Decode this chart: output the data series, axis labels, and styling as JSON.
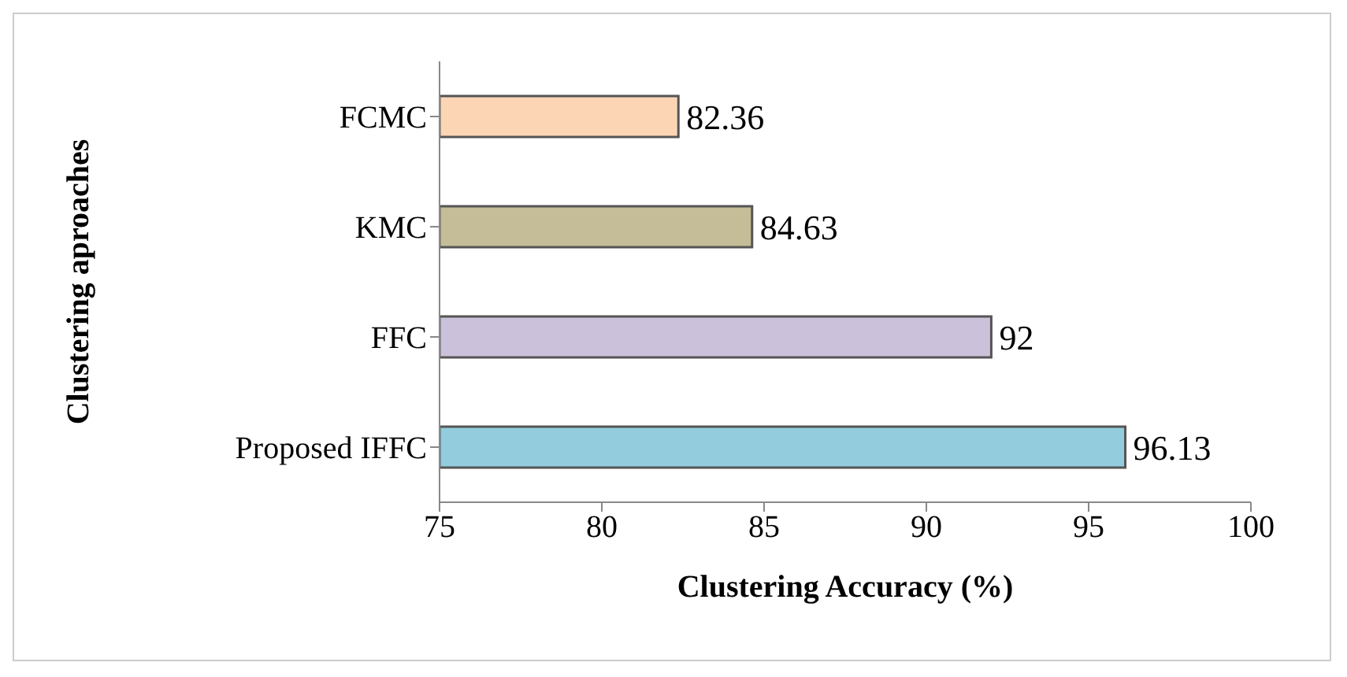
{
  "chart_data": {
    "type": "bar",
    "orientation": "horizontal",
    "categories": [
      "FCMC",
      "KMC",
      "FFC",
      "Proposed IFFC"
    ],
    "values": [
      82.36,
      84.63,
      92,
      96.13
    ],
    "colors": [
      "#fcd5b5",
      "#c4bd97",
      "#ccc1da",
      "#93cddd"
    ],
    "xlim": [
      75,
      100
    ],
    "xticks": [
      75,
      80,
      85,
      90,
      95,
      100
    ],
    "xlabel": "Clustering Accuracy (%)",
    "ylabel": "Clustering aproaches",
    "data_labels": true
  }
}
